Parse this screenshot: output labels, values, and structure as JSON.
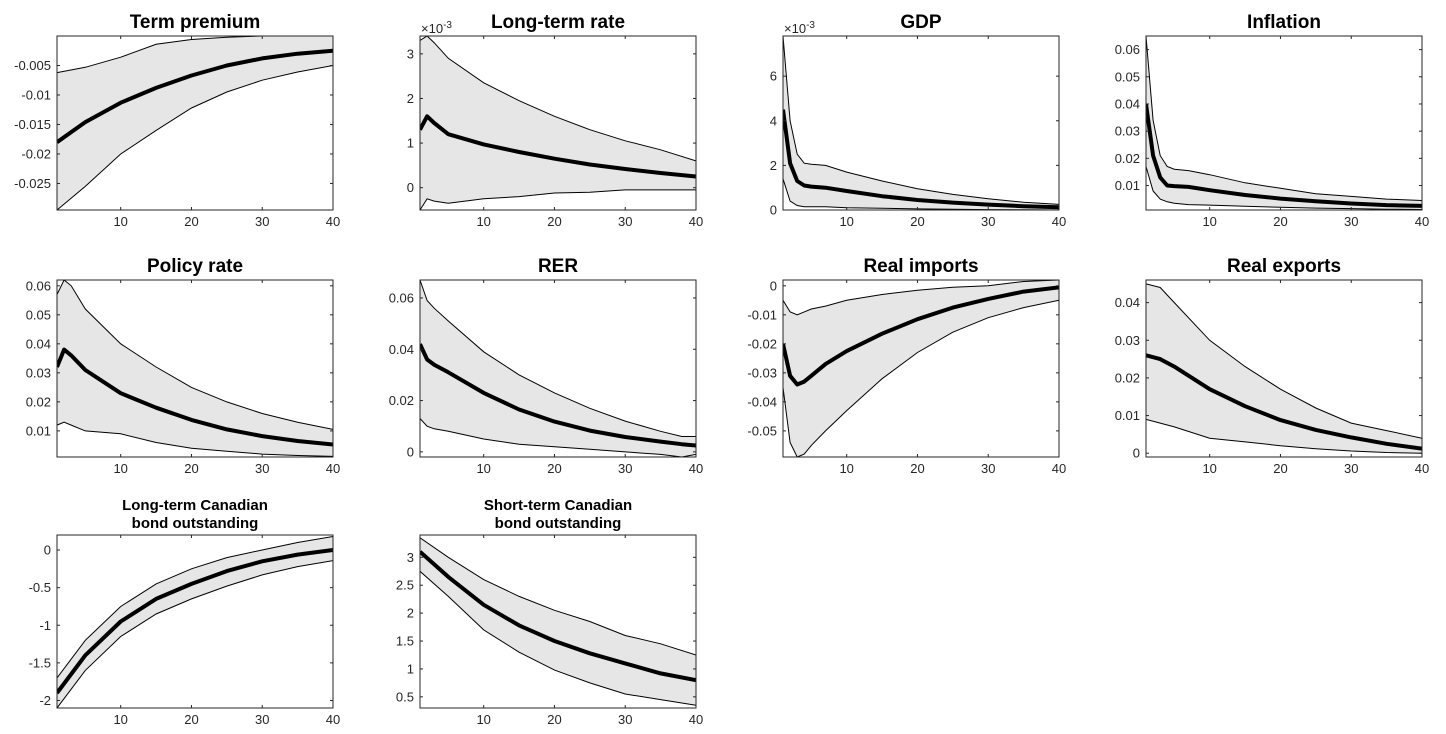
{
  "figure": {
    "colors": {
      "band": "#e6e6e6",
      "median": "#000000",
      "bounds": "#000000",
      "axes": "#262626"
    }
  },
  "chart_data": [
    {
      "type": "line",
      "title": [
        "Term premium"
      ],
      "exponent": "",
      "xlim": [
        1,
        40
      ],
      "ylim": [
        -0.0295,
        0.0
      ],
      "xticks": [
        10,
        20,
        30,
        40
      ],
      "xtick_labels": [
        "10",
        "20",
        "30",
        "40"
      ],
      "yticks": [
        -0.025,
        -0.02,
        -0.015,
        -0.01,
        -0.005
      ],
      "ytick_labels": [
        "-0.025",
        "-0.02",
        "-0.015",
        "-0.01",
        "-0.005"
      ],
      "x": [
        1,
        5,
        10,
        15,
        20,
        25,
        30,
        35,
        40
      ],
      "series": [
        {
          "role": "upper",
          "values": [
            -0.0062,
            -0.0053,
            -0.0036,
            -0.0014,
            -0.0006,
            -0.0002,
            0.0,
            0.0,
            0.0
          ]
        },
        {
          "role": "median",
          "values": [
            -0.018,
            -0.0146,
            -0.0113,
            -0.0088,
            -0.0067,
            -0.005,
            -0.0038,
            -0.003,
            -0.0025
          ]
        },
        {
          "role": "lower",
          "values": [
            -0.0295,
            -0.0255,
            -0.02,
            -0.016,
            -0.0122,
            -0.0095,
            -0.0075,
            -0.0061,
            -0.005
          ]
        }
      ]
    },
    {
      "type": "line",
      "title": [
        "Long-term rate"
      ],
      "exponent": "×10-3",
      "xlim": [
        1,
        40
      ],
      "ylim": [
        -0.5,
        3.4
      ],
      "xticks": [
        10,
        20,
        30,
        40
      ],
      "xtick_labels": [
        "10",
        "20",
        "30",
        "40"
      ],
      "yticks": [
        0,
        1,
        2,
        3
      ],
      "ytick_labels": [
        "0",
        "1",
        "2",
        "3"
      ],
      "x": [
        1,
        2,
        3,
        5,
        10,
        15,
        20,
        25,
        30,
        35,
        40
      ],
      "series": [
        {
          "role": "upper",
          "values": [
            3.3,
            3.4,
            3.25,
            2.9,
            2.35,
            1.95,
            1.6,
            1.3,
            1.05,
            0.85,
            0.6
          ]
        },
        {
          "role": "median",
          "values": [
            1.3,
            1.6,
            1.45,
            1.2,
            0.97,
            0.8,
            0.65,
            0.52,
            0.42,
            0.33,
            0.25
          ]
        },
        {
          "role": "lower",
          "values": [
            -0.5,
            -0.25,
            -0.3,
            -0.35,
            -0.25,
            -0.2,
            -0.12,
            -0.1,
            -0.05,
            -0.05,
            -0.05
          ]
        }
      ]
    },
    {
      "type": "line",
      "title": [
        "GDP"
      ],
      "exponent": "×10-3",
      "xlim": [
        1,
        40
      ],
      "ylim": [
        0,
        7.8
      ],
      "xticks": [
        10,
        20,
        30,
        40
      ],
      "xtick_labels": [
        "10",
        "20",
        "30",
        "40"
      ],
      "yticks": [
        0,
        2,
        4,
        6
      ],
      "ytick_labels": [
        "0",
        "2",
        "4",
        "6"
      ],
      "x": [
        1,
        2,
        3,
        4,
        5,
        7,
        10,
        15,
        20,
        25,
        30,
        35,
        40
      ],
      "series": [
        {
          "role": "upper",
          "values": [
            7.8,
            4.0,
            2.5,
            2.1,
            2.05,
            2.0,
            1.7,
            1.3,
            0.95,
            0.7,
            0.5,
            0.35,
            0.25
          ]
        },
        {
          "role": "median",
          "values": [
            4.5,
            2.1,
            1.3,
            1.1,
            1.05,
            1.0,
            0.85,
            0.62,
            0.45,
            0.33,
            0.24,
            0.17,
            0.12
          ]
        },
        {
          "role": "lower",
          "values": [
            1.4,
            0.4,
            0.2,
            0.15,
            0.15,
            0.15,
            0.1,
            0.08,
            0.05,
            0.03,
            0.02,
            0.01,
            0.0
          ]
        }
      ]
    },
    {
      "type": "line",
      "title": [
        "Inflation"
      ],
      "exponent": "",
      "xlim": [
        1,
        40
      ],
      "ylim": [
        0.001,
        0.065
      ],
      "xticks": [
        10,
        20,
        30,
        40
      ],
      "xtick_labels": [
        "10",
        "20",
        "30",
        "40"
      ],
      "yticks": [
        0.01,
        0.02,
        0.03,
        0.04,
        0.05,
        0.06
      ],
      "ytick_labels": [
        "0.01",
        "0.02",
        "0.03",
        "0.04",
        "0.05",
        "0.06"
      ],
      "x": [
        1,
        2,
        3,
        4,
        5,
        7,
        10,
        15,
        20,
        25,
        30,
        35,
        40
      ],
      "series": [
        {
          "role": "upper",
          "values": [
            0.065,
            0.034,
            0.021,
            0.017,
            0.016,
            0.0155,
            0.014,
            0.011,
            0.009,
            0.007,
            0.006,
            0.005,
            0.0045
          ]
        },
        {
          "role": "median",
          "values": [
            0.04,
            0.021,
            0.013,
            0.01,
            0.0098,
            0.0095,
            0.0083,
            0.0065,
            0.0052,
            0.0042,
            0.0034,
            0.0028,
            0.0025
          ]
        },
        {
          "role": "lower",
          "values": [
            0.017,
            0.008,
            0.005,
            0.004,
            0.0035,
            0.003,
            0.0028,
            0.0024,
            0.002,
            0.0017,
            0.0015,
            0.0013,
            0.0012
          ]
        }
      ]
    },
    {
      "type": "line",
      "title": [
        "Policy rate"
      ],
      "exponent": "",
      "xlim": [
        1,
        40
      ],
      "ylim": [
        0.001,
        0.062
      ],
      "xticks": [
        10,
        20,
        30,
        40
      ],
      "xtick_labels": [
        "10",
        "20",
        "30",
        "40"
      ],
      "yticks": [
        0.01,
        0.02,
        0.03,
        0.04,
        0.05,
        0.06
      ],
      "ytick_labels": [
        "0.01",
        "0.02",
        "0.03",
        "0.04",
        "0.05",
        "0.06"
      ],
      "x": [
        1,
        2,
        3,
        5,
        10,
        15,
        20,
        25,
        30,
        35,
        40
      ],
      "series": [
        {
          "role": "upper",
          "values": [
            0.057,
            0.062,
            0.06,
            0.052,
            0.04,
            0.032,
            0.025,
            0.02,
            0.016,
            0.013,
            0.0105
          ]
        },
        {
          "role": "median",
          "values": [
            0.032,
            0.038,
            0.036,
            0.031,
            0.023,
            0.018,
            0.0138,
            0.0105,
            0.0082,
            0.0065,
            0.0053
          ]
        },
        {
          "role": "lower",
          "values": [
            0.012,
            0.013,
            0.012,
            0.01,
            0.009,
            0.006,
            0.004,
            0.003,
            0.002,
            0.0015,
            0.0012
          ]
        }
      ]
    },
    {
      "type": "line",
      "title": [
        "RER"
      ],
      "exponent": "",
      "xlim": [
        1,
        40
      ],
      "ylim": [
        -0.002,
        0.067
      ],
      "xticks": [
        10,
        20,
        30,
        40
      ],
      "xtick_labels": [
        "10",
        "20",
        "30",
        "40"
      ],
      "yticks": [
        0,
        0.02,
        0.04,
        0.06
      ],
      "ytick_labels": [
        "0",
        "0.02",
        "0.04",
        "0.06"
      ],
      "x": [
        1,
        2,
        3,
        5,
        10,
        15,
        20,
        25,
        30,
        35,
        38,
        40
      ],
      "series": [
        {
          "role": "upper",
          "values": [
            0.067,
            0.059,
            0.056,
            0.051,
            0.039,
            0.03,
            0.023,
            0.017,
            0.012,
            0.008,
            0.006,
            0.006
          ]
        },
        {
          "role": "median",
          "values": [
            0.042,
            0.036,
            0.034,
            0.031,
            0.023,
            0.0165,
            0.0118,
            0.0083,
            0.0058,
            0.004,
            0.003,
            0.0025
          ]
        },
        {
          "role": "lower",
          "values": [
            0.013,
            0.01,
            0.009,
            0.008,
            0.005,
            0.003,
            0.002,
            0.001,
            0.0,
            -0.001,
            -0.002,
            -0.001
          ]
        }
      ]
    },
    {
      "type": "line",
      "title": [
        "Real imports"
      ],
      "exponent": "",
      "xlim": [
        1,
        40
      ],
      "ylim": [
        -0.059,
        0.002
      ],
      "xticks": [
        10,
        20,
        30,
        40
      ],
      "xtick_labels": [
        "10",
        "20",
        "30",
        "40"
      ],
      "yticks": [
        -0.05,
        -0.04,
        -0.03,
        -0.02,
        -0.01,
        0
      ],
      "ytick_labels": [
        "-0.05",
        "-0.04",
        "-0.03",
        "-0.02",
        "-0.01",
        "0"
      ],
      "x": [
        1,
        2,
        3,
        4,
        5,
        7,
        10,
        15,
        20,
        25,
        30,
        35,
        40
      ],
      "series": [
        {
          "role": "upper",
          "values": [
            -0.005,
            -0.009,
            -0.01,
            -0.009,
            -0.008,
            -0.007,
            -0.005,
            -0.003,
            -0.0015,
            -0.0005,
            0.0,
            0.0015,
            0.002
          ]
        },
        {
          "role": "median",
          "values": [
            -0.02,
            -0.031,
            -0.034,
            -0.033,
            -0.031,
            -0.027,
            -0.0225,
            -0.0165,
            -0.0115,
            -0.0075,
            -0.0045,
            -0.002,
            -0.0005
          ]
        },
        {
          "role": "lower",
          "values": [
            -0.035,
            -0.054,
            -0.059,
            -0.058,
            -0.055,
            -0.05,
            -0.043,
            -0.032,
            -0.023,
            -0.016,
            -0.011,
            -0.0075,
            -0.005
          ]
        }
      ]
    },
    {
      "type": "line",
      "title": [
        "Real exports"
      ],
      "exponent": "",
      "xlim": [
        1,
        40
      ],
      "ylim": [
        -0.001,
        0.046
      ],
      "xticks": [
        10,
        20,
        30,
        40
      ],
      "xtick_labels": [
        "10",
        "20",
        "30",
        "40"
      ],
      "yticks": [
        0,
        0.01,
        0.02,
        0.03,
        0.04
      ],
      "ytick_labels": [
        "0",
        "0.01",
        "0.02",
        "0.03",
        "0.04"
      ],
      "x": [
        1,
        3,
        5,
        10,
        15,
        20,
        25,
        30,
        35,
        40
      ],
      "series": [
        {
          "role": "upper",
          "values": [
            0.045,
            0.044,
            0.04,
            0.03,
            0.023,
            0.017,
            0.012,
            0.008,
            0.006,
            0.004
          ]
        },
        {
          "role": "median",
          "values": [
            0.026,
            0.025,
            0.023,
            0.017,
            0.0125,
            0.0088,
            0.0062,
            0.0042,
            0.0025,
            0.0012
          ]
        },
        {
          "role": "lower",
          "values": [
            0.009,
            0.008,
            0.007,
            0.004,
            0.003,
            0.002,
            0.0012,
            0.0006,
            0.0002,
            0.0
          ]
        }
      ]
    },
    {
      "type": "line",
      "title": [
        "Long-term Canadian",
        "bond outstanding"
      ],
      "exponent": "",
      "xlim": [
        1,
        40
      ],
      "ylim": [
        -2.1,
        0.2
      ],
      "xticks": [
        10,
        20,
        30,
        40
      ],
      "xtick_labels": [
        "10",
        "20",
        "30",
        "40"
      ],
      "yticks": [
        -2,
        -1.5,
        -1,
        -0.5,
        0
      ],
      "ytick_labels": [
        "-2",
        "-1.5",
        "-1",
        "-0.5",
        "0"
      ],
      "x": [
        1,
        5,
        10,
        15,
        20,
        25,
        30,
        35,
        40
      ],
      "series": [
        {
          "role": "upper",
          "values": [
            -1.7,
            -1.2,
            -0.75,
            -0.45,
            -0.25,
            -0.1,
            0.0,
            0.1,
            0.18
          ]
        },
        {
          "role": "median",
          "values": [
            -1.9,
            -1.4,
            -0.95,
            -0.65,
            -0.45,
            -0.28,
            -0.15,
            -0.06,
            0.0
          ]
        },
        {
          "role": "lower",
          "values": [
            -2.1,
            -1.6,
            -1.15,
            -0.85,
            -0.65,
            -0.48,
            -0.33,
            -0.22,
            -0.14
          ]
        }
      ]
    },
    {
      "type": "line",
      "title": [
        "Short-term Canadian",
        "bond outstanding"
      ],
      "exponent": "",
      "xlim": [
        1,
        40
      ],
      "ylim": [
        0.3,
        3.4
      ],
      "xticks": [
        10,
        20,
        30,
        40
      ],
      "xtick_labels": [
        "10",
        "20",
        "30",
        "40"
      ],
      "yticks": [
        0.5,
        1,
        1.5,
        2,
        2.5,
        3
      ],
      "ytick_labels": [
        "0.5",
        "1",
        "1.5",
        "2",
        "2.5",
        "3"
      ],
      "x": [
        1,
        5,
        10,
        15,
        20,
        25,
        30,
        35,
        40
      ],
      "series": [
        {
          "role": "upper",
          "values": [
            3.35,
            3.0,
            2.6,
            2.3,
            2.05,
            1.85,
            1.6,
            1.45,
            1.25
          ]
        },
        {
          "role": "median",
          "values": [
            3.1,
            2.65,
            2.15,
            1.78,
            1.5,
            1.28,
            1.1,
            0.92,
            0.8
          ]
        },
        {
          "role": "lower",
          "values": [
            2.75,
            2.3,
            1.7,
            1.3,
            0.98,
            0.75,
            0.55,
            0.45,
            0.35
          ]
        }
      ]
    }
  ]
}
